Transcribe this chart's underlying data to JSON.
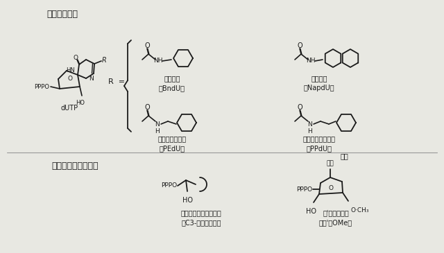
{
  "bg_color": "#e8e8e2",
  "title_top": "修飾塩基置換",
  "title_bottom_left": "骨格及び脱塩基置換",
  "label_dutp": "dUTP",
  "label_benzil": "ベンジル\n（BndU）",
  "label_naphthyl": "ナフチル\n（NapdU）",
  "label_phenylethyl": "フェニルエチル\n（PEdU）",
  "label_phenylpropyl": "フェニルプロピル\n（PPdU）",
  "label_abasic": "脱塩基、アンロックド\n（C3-スペーサー）",
  "label_methoxy": "２'－メトキシ\n（２'－OMe）",
  "label_enki": "塩基",
  "white": "#ffffff",
  "black": "#1a1a1a",
  "gray_line": "#999999"
}
